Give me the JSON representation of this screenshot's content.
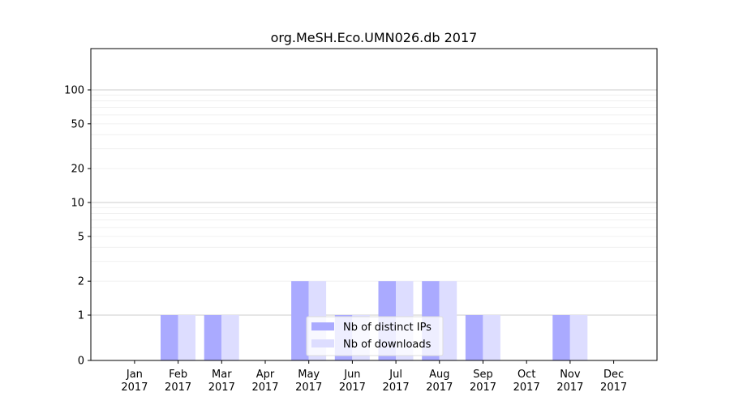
{
  "chart_data": {
    "type": "bar",
    "title": "org.MeSH.Eco.UMN026.db 2017",
    "xlabel": "",
    "ylabel": "",
    "y_scale": "symlog",
    "y_ticks": [
      0,
      1,
      2,
      5,
      10,
      20,
      50,
      100
    ],
    "y_tick_labels": [
      "0",
      "1",
      "2",
      "5",
      "10",
      "20",
      "50",
      "100"
    ],
    "categories": [
      [
        "Jan",
        "2017"
      ],
      [
        "Feb",
        "2017"
      ],
      [
        "Mar",
        "2017"
      ],
      [
        "Apr",
        "2017"
      ],
      [
        "May",
        "2017"
      ],
      [
        "Jun",
        "2017"
      ],
      [
        "Jul",
        "2017"
      ],
      [
        "Aug",
        "2017"
      ],
      [
        "Sep",
        "2017"
      ],
      [
        "Oct",
        "2017"
      ],
      [
        "Nov",
        "2017"
      ],
      [
        "Dec",
        "2017"
      ]
    ],
    "series": [
      {
        "name": "Nb of distinct IPs",
        "color": "#aaaaff",
        "values": [
          0,
          1,
          1,
          0,
          2,
          1,
          2,
          2,
          1,
          0,
          1,
          0
        ]
      },
      {
        "name": "Nb of downloads",
        "color": "#ddddff",
        "values": [
          0,
          1,
          1,
          0,
          2,
          1,
          2,
          2,
          1,
          0,
          1,
          0
        ]
      }
    ],
    "legend_position": "lower-center",
    "grid": true
  }
}
